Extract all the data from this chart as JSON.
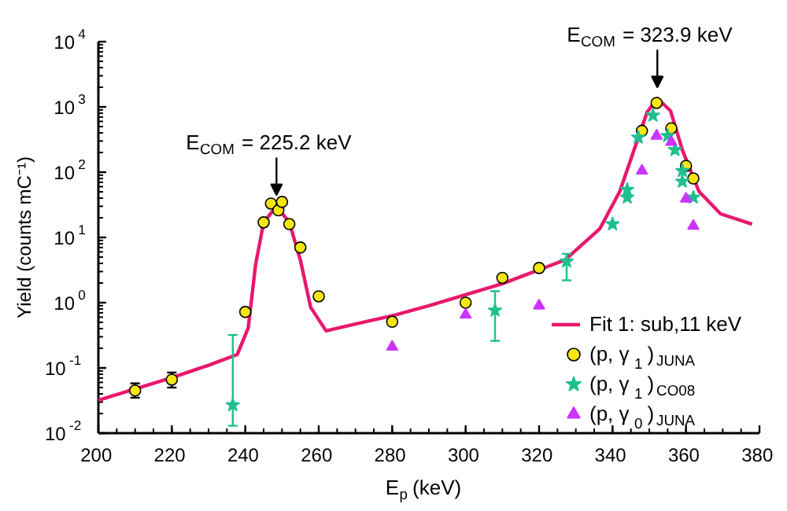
{
  "chart_data": {
    "type": "scatter",
    "xlabel": "E$_{p}$ (keV)",
    "ylabel": "Yield (counts mC⁻¹)",
    "log": "y",
    "xlim": [
      200,
      380
    ],
    "ylim": [
      0.01,
      10000
    ],
    "xticks": [
      200,
      220,
      240,
      260,
      280,
      300,
      320,
      340,
      360,
      380
    ],
    "yticks": [
      {
        "value": 0.01,
        "label": "10$^{-2}$"
      },
      {
        "value": 0.1,
        "label": "10$^{-1}$"
      },
      {
        "value": 1,
        "label": "10$^{0}$"
      },
      {
        "value": 10,
        "label": "10$^{1}$"
      },
      {
        "value": 100,
        "label": "10$^{2}$"
      },
      {
        "value": 1000,
        "label": "10$^{3}$"
      },
      {
        "value": 10000,
        "label": "10$^{4}$"
      }
    ],
    "grid": false,
    "legend": "bottom right",
    "annotations": [
      {
        "text": "E$_{COM}$ = 225.2 keV",
        "x": 248.5,
        "y": 30
      },
      {
        "text": "E$_{COM}$ = 323.9 keV",
        "x": 352.2,
        "y": 1350
      }
    ],
    "series": [
      {
        "name": "Fit 1: sub,11 keV",
        "type": "line",
        "color": "#e8186d",
        "x": [
          200,
          220,
          230,
          237.8,
          240.8,
          242.8,
          245,
          248.5,
          252,
          255,
          257.8,
          262,
          270,
          280,
          290,
          310,
          327,
          336.5,
          342,
          346.4,
          349.4,
          352.2,
          355.8,
          359,
          363.5,
          369.4,
          378
        ],
        "values": [
          0.032,
          0.071,
          0.11,
          0.16,
          0.41,
          3.8,
          17,
          30,
          17,
          4.5,
          0.85,
          0.37,
          0.47,
          0.63,
          0.9,
          1.95,
          4.5,
          13.5,
          51,
          270,
          830,
          1350,
          870,
          220,
          51,
          23,
          16
        ]
      },
      {
        "name": "(p, γ$_{1}$)$_{JUNA}$",
        "color": "#f5e60f",
        "marker": "circle",
        "x": [
          210,
          220,
          240,
          245,
          247,
          249,
          250,
          252,
          255,
          260,
          280,
          300,
          310,
          320,
          348,
          352,
          356,
          360,
          362
        ],
        "values": [
          0.045,
          0.066,
          0.72,
          17,
          33,
          26,
          35,
          16,
          7,
          1.25,
          0.51,
          1.0,
          2.4,
          3.4,
          430,
          1150,
          470,
          125,
          80
        ],
        "errors": [
          [
            0.035,
            0.058
          ],
          [
            0.05,
            0.085
          ],
          null,
          null,
          null,
          null,
          null,
          null,
          null,
          null,
          null,
          null,
          null,
          null,
          null,
          null,
          null,
          null,
          null
        ]
      },
      {
        "name": "(p, γ$_{1}$)$_{CO08}$",
        "color": "#1fbf8f",
        "marker": "star",
        "x": [
          236.6,
          308,
          327.5,
          340,
          344,
          344,
          347,
          351,
          355,
          357,
          359,
          359,
          362
        ],
        "values": [
          0.027,
          0.76,
          4.3,
          16,
          41,
          54,
          340,
          740,
          360,
          220,
          105,
          72,
          41
        ],
        "errors": [
          [
            0.013,
            0.32
          ],
          [
            0.26,
            1.5
          ],
          [
            2.2,
            5.6
          ],
          null,
          null,
          null,
          null,
          null,
          null,
          null,
          null,
          null,
          null
        ]
      },
      {
        "name": "(p, γ$_{0}$)$_{JUNA}$",
        "color": "#cc33ff",
        "marker": "triangle",
        "x": [
          280,
          300,
          320,
          348,
          352,
          356,
          360,
          362
        ],
        "values": [
          0.21,
          0.65,
          0.9,
          105,
          360,
          290,
          39,
          15
        ]
      }
    ]
  }
}
